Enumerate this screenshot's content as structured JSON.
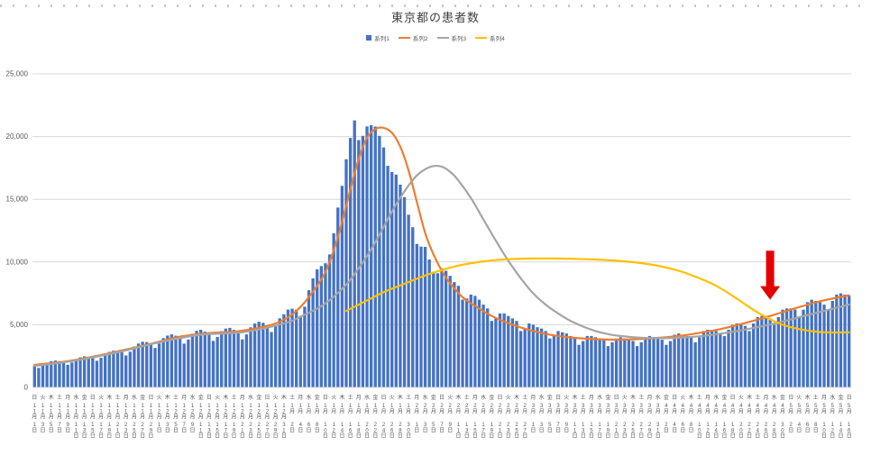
{
  "chart_data": {
    "type": "bar",
    "title": "東京都の患者数",
    "ylabel": "",
    "xlabel": "",
    "ylim": [
      0,
      25000
    ],
    "grid": "horizontal",
    "legend_position": "top",
    "y_ticks": [
      "0",
      "5,000",
      "10,000",
      "15,000",
      "20,000",
      "25,000"
    ],
    "x_labels": [
      [
        "日",
        "11月",
        "1日"
      ],
      [
        "火",
        "11月",
        "3日"
      ],
      [
        "木",
        "11月",
        "5日"
      ],
      [
        "土",
        "11月",
        "7日"
      ],
      [
        "月",
        "11月",
        "9日"
      ],
      [
        "水",
        "11月",
        "11日"
      ],
      [
        "金",
        "11月",
        "13日"
      ],
      [
        "日",
        "11月",
        "15日"
      ],
      [
        "火",
        "11月",
        "17日"
      ],
      [
        "木",
        "11月",
        "19日"
      ],
      [
        "土",
        "11月",
        "21日"
      ],
      [
        "月",
        "11月",
        "23日"
      ],
      [
        "水",
        "11月",
        "25日"
      ],
      [
        "金",
        "11月",
        "27日"
      ],
      [
        "日",
        "11月",
        "29日"
      ],
      [
        "火",
        "12月",
        "1日"
      ],
      [
        "木",
        "12月",
        "3日"
      ],
      [
        "土",
        "12月",
        "5日"
      ],
      [
        "月",
        "12月",
        "7日"
      ],
      [
        "水",
        "12月",
        "9日"
      ],
      [
        "金",
        "12月",
        "11日"
      ],
      [
        "日",
        "12月",
        "13日"
      ],
      [
        "火",
        "12月",
        "15日"
      ],
      [
        "木",
        "12月",
        "17日"
      ],
      [
        "土",
        "12月",
        "19日"
      ],
      [
        "月",
        "12月",
        "21日"
      ],
      [
        "水",
        "12月",
        "23日"
      ],
      [
        "金",
        "12月",
        "25日"
      ],
      [
        "日",
        "12月",
        "27日"
      ],
      [
        "火",
        "12月",
        "29日"
      ],
      [
        "木",
        "12月",
        "31日"
      ],
      [
        "土",
        "1月",
        "2日"
      ],
      [
        "月",
        "1月",
        "4日"
      ],
      [
        "水",
        "1月",
        "6日"
      ],
      [
        "金",
        "1月",
        "8日"
      ],
      [
        "日",
        "1月",
        "10日"
      ],
      [
        "火",
        "1月",
        "12日"
      ],
      [
        "木",
        "1月",
        "14日"
      ],
      [
        "土",
        "1月",
        "16日"
      ],
      [
        "月",
        "1月",
        "18日"
      ],
      [
        "水",
        "1月",
        "20日"
      ],
      [
        "金",
        "1月",
        "22日"
      ],
      [
        "日",
        "1月",
        "24日"
      ],
      [
        "火",
        "1月",
        "26日"
      ],
      [
        "木",
        "1月",
        "28日"
      ],
      [
        "土",
        "1月",
        "30日"
      ],
      [
        "月",
        "2月",
        "1日"
      ],
      [
        "水",
        "2月",
        "3日"
      ],
      [
        "金",
        "2月",
        "5日"
      ],
      [
        "日",
        "2月",
        "7日"
      ],
      [
        "火",
        "2月",
        "9日"
      ],
      [
        "木",
        "2月",
        "11日"
      ],
      [
        "土",
        "2月",
        "13日"
      ],
      [
        "月",
        "2月",
        "15日"
      ],
      [
        "水",
        "2月",
        "17日"
      ],
      [
        "金",
        "2月",
        "19日"
      ],
      [
        "日",
        "2月",
        "21日"
      ],
      [
        "火",
        "2月",
        "23日"
      ],
      [
        "木",
        "2月",
        "25日"
      ],
      [
        "土",
        "2月",
        "27日"
      ],
      [
        "月",
        "3月",
        "1日"
      ],
      [
        "水",
        "3月",
        "3日"
      ],
      [
        "金",
        "3月",
        "5日"
      ],
      [
        "日",
        "3月",
        "7日"
      ],
      [
        "火",
        "3月",
        "9日"
      ],
      [
        "木",
        "3月",
        "11日"
      ],
      [
        "土",
        "3月",
        "13日"
      ],
      [
        "月",
        "3月",
        "15日"
      ],
      [
        "水",
        "3月",
        "17日"
      ],
      [
        "金",
        "3月",
        "19日"
      ],
      [
        "日",
        "3月",
        "21日"
      ],
      [
        "火",
        "3月",
        "23日"
      ],
      [
        "木",
        "3月",
        "25日"
      ],
      [
        "土",
        "3月",
        "27日"
      ],
      [
        "月",
        "3月",
        "29日"
      ],
      [
        "水",
        "3月",
        "31日"
      ],
      [
        "金",
        "4月",
        "2日"
      ],
      [
        "日",
        "4月",
        "4日"
      ],
      [
        "火",
        "4月",
        "6日"
      ],
      [
        "木",
        "4月",
        "8日"
      ],
      [
        "土",
        "4月",
        "10日"
      ],
      [
        "月",
        "4月",
        "12日"
      ],
      [
        "水",
        "4月",
        "14日"
      ],
      [
        "金",
        "4月",
        "16日"
      ],
      [
        "日",
        "4月",
        "18日"
      ],
      [
        "火",
        "4月",
        "20日"
      ],
      [
        "木",
        "4月",
        "22日"
      ],
      [
        "土",
        "4月",
        "24日"
      ],
      [
        "月",
        "4月",
        "26日"
      ],
      [
        "水",
        "4月",
        "28日"
      ],
      [
        "金",
        "4月",
        "30日"
      ],
      [
        "日",
        "5月",
        "2日"
      ],
      [
        "火",
        "5月",
        "4日"
      ],
      [
        "木",
        "5月",
        "6日"
      ],
      [
        "土",
        "5月",
        "8日"
      ],
      [
        "月",
        "5月",
        "10日"
      ],
      [
        "水",
        "5月",
        "12日"
      ],
      [
        "金",
        "5月",
        "14日"
      ],
      [
        "日",
        "5月",
        "16日"
      ]
    ],
    "bars": {
      "name": "系列1",
      "color": "#4472C4",
      "values": [
        1750,
        1560,
        1730,
        1960,
        2080,
        2140,
        2100,
        2020,
        1800,
        1990,
        2240,
        2400,
        2480,
        2450,
        2370,
        2130,
        2360,
        2670,
        2840,
        2930,
        2880,
        2810,
        2550,
        2850,
        3260,
        3500,
        3640,
        3610,
        3490,
        3150,
        3500,
        3930,
        4130,
        4230,
        4120,
        3930,
        3490,
        3820,
        4280,
        4510,
        4600,
        4450,
        4210,
        3710,
        4030,
        4490,
        4690,
        4750,
        4590,
        4350,
        3830,
        4230,
        4790,
        5090,
        5240,
        5150,
        4950,
        4420,
        4880,
        5510,
        5830,
        6210,
        6280,
        6210,
        5700,
        6440,
        7750,
        8690,
        9420,
        9680,
        9900,
        10600,
        12290,
        14340,
        16070,
        18200,
        19890,
        21290,
        19720,
        20060,
        20810,
        20910,
        20800,
        20060,
        19140,
        17670,
        17180,
        16970,
        16170,
        15180,
        13770,
        12770,
        11440,
        11230,
        11210,
        10200,
        9200,
        9100,
        9500,
        9300,
        8900,
        8400,
        8100,
        7000,
        7100,
        7400,
        7300,
        7000,
        6600,
        6300,
        5300,
        5500,
        5900,
        5900,
        5700,
        5500,
        5300,
        4500,
        4700,
        5100,
        5000,
        4800,
        4700,
        4500,
        3900,
        4100,
        4500,
        4400,
        4300,
        4100,
        4000,
        3400,
        3700,
        4100,
        4100,
        4000,
        3900,
        3800,
        3300,
        3600,
        3900,
        4000,
        3900,
        3800,
        3700,
        3300,
        3600,
        4000,
        4100,
        4000,
        3900,
        3800,
        3400,
        3700,
        4200,
        4300,
        4200,
        4100,
        4000,
        3600,
        4000,
        4500,
        4600,
        4600,
        4500,
        4300,
        4100,
        4600,
        5000,
        5100,
        5100,
        4900,
        4500,
        5100,
        5600,
        5700,
        5700,
        5500,
        5000,
        5600,
        6200,
        6300,
        6300,
        6200,
        5600,
        6200,
        6800,
        7000,
        6900,
        6800,
        6600,
        6200,
        6900,
        7400,
        7500,
        7400,
        7300
      ]
    },
    "lines": [
      {
        "name": "系列2",
        "color": "#ED7D31",
        "points": [
          [
            0,
            1800
          ],
          [
            7,
            2050
          ],
          [
            14,
            2450
          ],
          [
            21,
            2950
          ],
          [
            28,
            3480
          ],
          [
            35,
            4050
          ],
          [
            42,
            4330
          ],
          [
            49,
            4480
          ],
          [
            56,
            4900
          ],
          [
            60,
            5400
          ],
          [
            63,
            6100
          ],
          [
            66,
            7200
          ],
          [
            70,
            9200
          ],
          [
            73,
            12000
          ],
          [
            76,
            15800
          ],
          [
            78,
            18200
          ],
          [
            80,
            19900
          ],
          [
            82,
            20600
          ],
          [
            84,
            20700
          ],
          [
            86,
            20300
          ],
          [
            88,
            19200
          ],
          [
            90,
            17300
          ],
          [
            92,
            14800
          ],
          [
            94,
            12300
          ],
          [
            96,
            10600
          ],
          [
            98,
            9300
          ],
          [
            100,
            8300
          ],
          [
            103,
            7200
          ],
          [
            106,
            6500
          ],
          [
            110,
            5700
          ],
          [
            115,
            5000
          ],
          [
            120,
            4500
          ],
          [
            125,
            4150
          ],
          [
            130,
            3950
          ],
          [
            135,
            3850
          ],
          [
            140,
            3800
          ],
          [
            145,
            3850
          ],
          [
            150,
            3950
          ],
          [
            155,
            4100
          ],
          [
            160,
            4350
          ],
          [
            165,
            4650
          ],
          [
            170,
            5050
          ],
          [
            175,
            5500
          ],
          [
            180,
            6000
          ],
          [
            185,
            6500
          ],
          [
            190,
            6950
          ],
          [
            196,
            7350
          ]
        ]
      },
      {
        "name": "系列3",
        "color": "#A5A5A5",
        "points": [
          [
            0,
            1700
          ],
          [
            10,
            2150
          ],
          [
            20,
            2800
          ],
          [
            30,
            3600
          ],
          [
            40,
            4200
          ],
          [
            50,
            4400
          ],
          [
            60,
            5100
          ],
          [
            65,
            5800
          ],
          [
            70,
            6700
          ],
          [
            75,
            8200
          ],
          [
            78,
            9500
          ],
          [
            81,
            11000
          ],
          [
            84,
            12800
          ],
          [
            87,
            14600
          ],
          [
            90,
            16100
          ],
          [
            92,
            16900
          ],
          [
            94,
            17400
          ],
          [
            96,
            17650
          ],
          [
            98,
            17600
          ],
          [
            100,
            17200
          ],
          [
            102,
            16500
          ],
          [
            105,
            15100
          ],
          [
            108,
            13400
          ],
          [
            111,
            11700
          ],
          [
            114,
            10100
          ],
          [
            117,
            8700
          ],
          [
            120,
            7500
          ],
          [
            123,
            6600
          ],
          [
            126,
            5900
          ],
          [
            129,
            5300
          ],
          [
            132,
            4850
          ],
          [
            135,
            4500
          ],
          [
            138,
            4250
          ],
          [
            141,
            4100
          ],
          [
            145,
            3980
          ],
          [
            150,
            3920
          ],
          [
            155,
            3960
          ],
          [
            160,
            4080
          ],
          [
            165,
            4280
          ],
          [
            170,
            4550
          ],
          [
            175,
            4880
          ],
          [
            180,
            5250
          ],
          [
            185,
            5680
          ],
          [
            190,
            6100
          ],
          [
            196,
            6600
          ]
        ]
      },
      {
        "name": "系列4",
        "color": "#FFC000",
        "points": [
          [
            75,
            6100
          ],
          [
            78,
            6600
          ],
          [
            81,
            7100
          ],
          [
            84,
            7600
          ],
          [
            87,
            8000
          ],
          [
            90,
            8400
          ],
          [
            93,
            8800
          ],
          [
            96,
            9150
          ],
          [
            100,
            9550
          ],
          [
            104,
            9850
          ],
          [
            108,
            10050
          ],
          [
            112,
            10180
          ],
          [
            116,
            10250
          ],
          [
            120,
            10280
          ],
          [
            125,
            10280
          ],
          [
            130,
            10250
          ],
          [
            135,
            10200
          ],
          [
            140,
            10100
          ],
          [
            145,
            9950
          ],
          [
            150,
            9700
          ],
          [
            155,
            9300
          ],
          [
            160,
            8700
          ],
          [
            164,
            8100
          ],
          [
            168,
            7300
          ],
          [
            172,
            6400
          ],
          [
            176,
            5600
          ],
          [
            180,
            5000
          ],
          [
            184,
            4650
          ],
          [
            188,
            4450
          ],
          [
            192,
            4380
          ],
          [
            196,
            4400
          ]
        ]
      }
    ],
    "annotation": {
      "shape": "red-down-arrow",
      "color": "#E50000",
      "day_index": 177,
      "value_top": 10900,
      "value_tip": 7000
    }
  },
  "legend": {
    "items": [
      {
        "label": "系列1",
        "color": "#4472C4",
        "marker": "bar"
      },
      {
        "label": "系列2",
        "color": "#ED7D31",
        "marker": "line"
      },
      {
        "label": "系列3",
        "color": "#A5A5A5",
        "marker": "line"
      },
      {
        "label": "系列4",
        "color": "#FFC000",
        "marker": "line"
      }
    ]
  },
  "style": {
    "gridline_color": "#D9D9D9",
    "axis_text_color": "#595959",
    "title_color": "#404040"
  }
}
